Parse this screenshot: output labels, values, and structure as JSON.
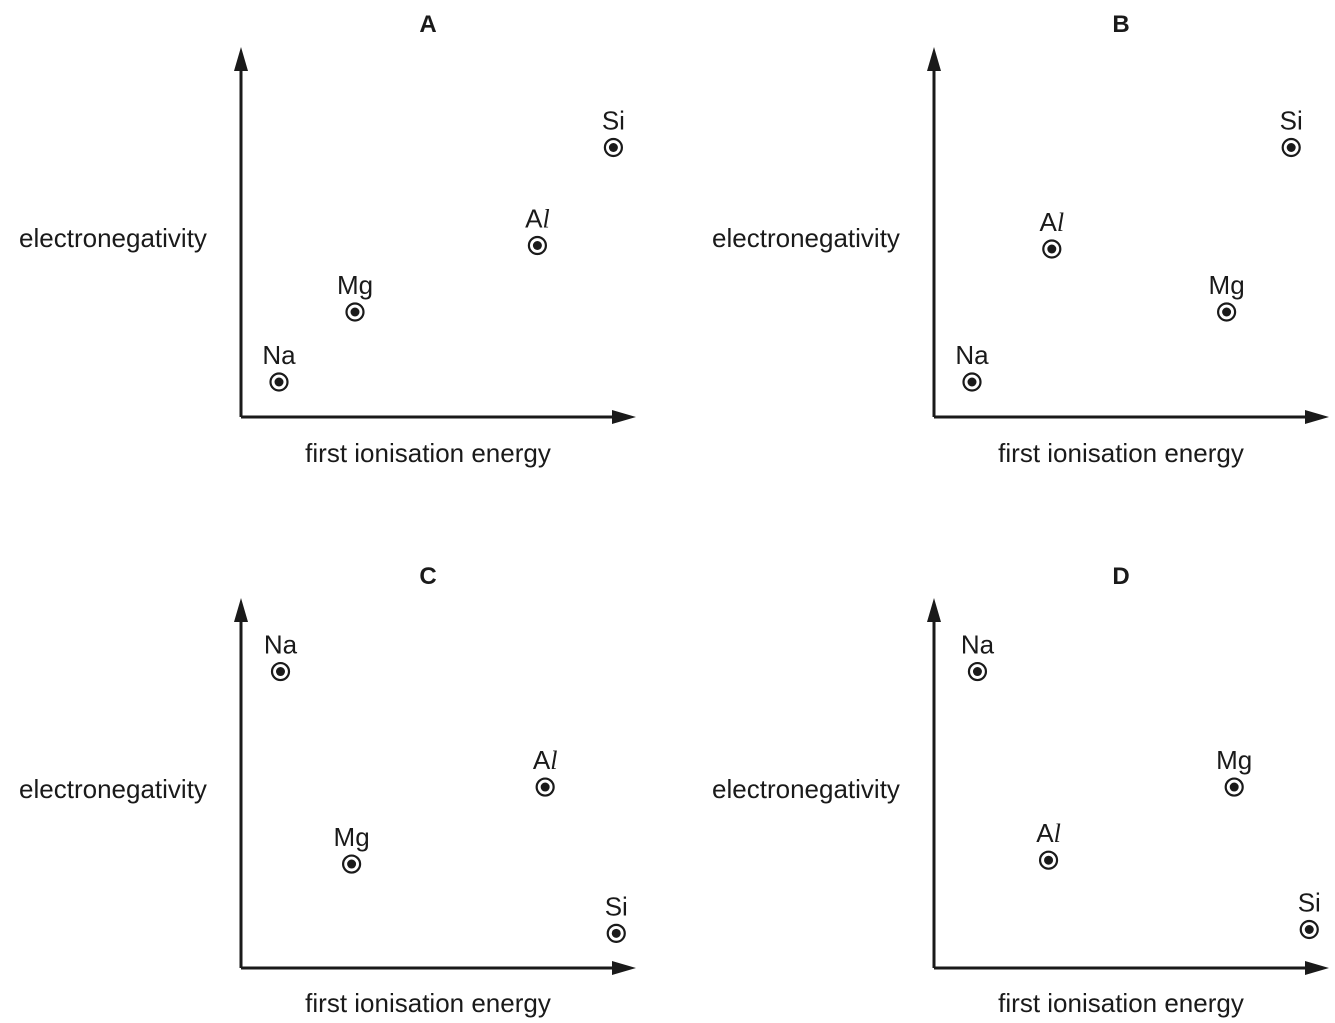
{
  "chart_data": [
    {
      "type": "scatter",
      "title": "A",
      "xlabel": "first ionisation energy",
      "ylabel": "electronegativity",
      "xlim": [
        0,
        100
      ],
      "ylim": [
        0,
        100
      ],
      "points": [
        {
          "label": "Na",
          "x": 10,
          "y": 10
        },
        {
          "label": "Mg",
          "x": 30,
          "y": 30
        },
        {
          "label": "Al",
          "x": 78,
          "y": 49
        },
        {
          "label": "Si",
          "x": 98,
          "y": 77
        }
      ]
    },
    {
      "type": "scatter",
      "title": "B",
      "xlabel": "first ionisation energy",
      "ylabel": "electronegativity",
      "xlim": [
        0,
        100
      ],
      "ylim": [
        0,
        100
      ],
      "points": [
        {
          "label": "Na",
          "x": 10,
          "y": 10
        },
        {
          "label": "Al",
          "x": 31,
          "y": 48
        },
        {
          "label": "Mg",
          "x": 77,
          "y": 30
        },
        {
          "label": "Si",
          "x": 94,
          "y": 77
        }
      ]
    },
    {
      "type": "scatter",
      "title": "C",
      "xlabel": "first ionisation energy",
      "ylabel": "electronegativity",
      "xlim": [
        0,
        100
      ],
      "ylim": [
        0,
        100
      ],
      "points": [
        {
          "label": "Na",
          "x": 10,
          "y": 77
        },
        {
          "label": "Mg",
          "x": 28,
          "y": 27
        },
        {
          "label": "Al",
          "x": 77,
          "y": 47
        },
        {
          "label": "Si",
          "x": 95,
          "y": 9
        }
      ]
    },
    {
      "type": "scatter",
      "title": "D",
      "xlabel": "first ionisation energy",
      "ylabel": "electronegativity",
      "xlim": [
        0,
        100
      ],
      "ylim": [
        0,
        100
      ],
      "points": [
        {
          "label": "Na",
          "x": 11,
          "y": 77
        },
        {
          "label": "Al",
          "x": 29,
          "y": 28
        },
        {
          "label": "Mg",
          "x": 76,
          "y": 47
        },
        {
          "label": "Si",
          "x": 95,
          "y": 10
        }
      ]
    }
  ]
}
